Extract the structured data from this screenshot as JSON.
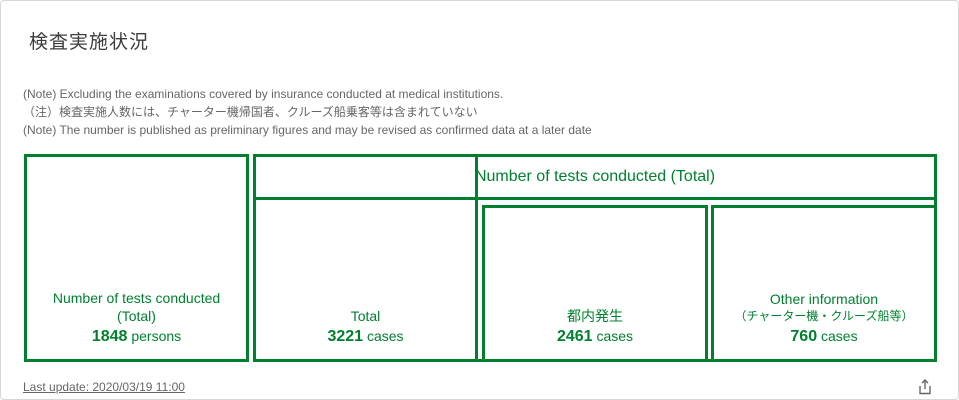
{
  "card": {
    "title": "検査実施状況",
    "notes": [
      "(Note) Excluding the examinations covered by insurance conducted at medical institutions.",
      "（注）検査実施人数には、チャーター機帰国者、クルーズ船乗客等は含まれていない",
      "(Note) The number is published as preliminary figures and may be revised as confirmed data at a later date"
    ],
    "persons_box": {
      "label_line1": "Number of tests conducted",
      "label_line2": "(Total)",
      "value": "1848",
      "unit": "persons"
    },
    "header_box": {
      "label": "Number of tests conducted (Total)"
    },
    "total_box": {
      "label": "Total",
      "value": "3221",
      "unit": "cases"
    },
    "tonai_box": {
      "label": "都内発生",
      "value": "2461",
      "unit": "cases"
    },
    "other_box": {
      "label": "Other information",
      "sublabel": "（チャーター機・クルーズ船等）",
      "value": "760",
      "unit": "cases"
    },
    "last_update": "Last update: 2020/03/19 11:00",
    "share_icon": "share-icon",
    "accent_color": "#00802f"
  }
}
